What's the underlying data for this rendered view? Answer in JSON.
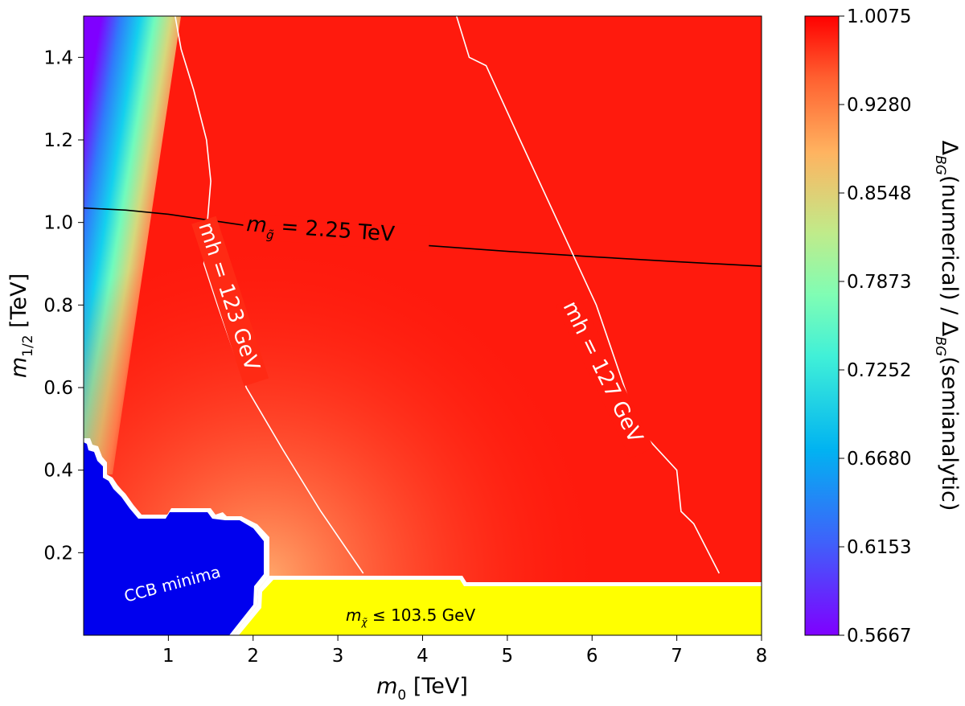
{
  "chart_data": {
    "type": "heatmap",
    "title": "",
    "xlabel_main": "m",
    "xlabel_sub": "0",
    "xlabel_unit": " [TeV]",
    "ylabel_main": "m",
    "ylabel_sub": "1/2",
    "ylabel_unit": " [TeV]",
    "xlim": [
      0,
      8
    ],
    "ylim": [
      0,
      1.5
    ],
    "x_ticks": [
      1,
      2,
      3,
      4,
      5,
      6,
      7,
      8
    ],
    "x_tick_labels": [
      "1",
      "2",
      "3",
      "4",
      "5",
      "6",
      "7",
      "8"
    ],
    "y_ticks": [
      0.2,
      0.4,
      0.6,
      0.8,
      1.0,
      1.2,
      1.4
    ],
    "y_tick_labels": [
      "0.2",
      "0.4",
      "0.6",
      "0.8",
      "1.0",
      "1.2",
      "1.4"
    ],
    "colorbar": {
      "min": 0.5667,
      "max": 1.0075,
      "ticks": [
        1.0075,
        0.928,
        0.8548,
        0.7873,
        0.7252,
        0.668,
        0.6153,
        0.5667
      ],
      "tick_labels": [
        "1.0075",
        "0.9280",
        "0.8548",
        "0.7873",
        "0.7252",
        "0.6680",
        "0.6153",
        "0.5667"
      ],
      "label": "ΔBG(numerical) / ΔBG(semianalytic)",
      "label_parts": {
        "delta": "Δ",
        "sub": "BG",
        "num": "(numerical) / ",
        "sem": "(semianalytic)"
      },
      "colormap": "rainbow"
    },
    "contours": [
      {
        "name": "gluino",
        "label": "m̃ = 2.25 TeV",
        "label_parts": {
          "m": "m",
          "sub": "g̃",
          "rest": " = 2.25 TeV"
        },
        "color": "#000000",
        "x": [
          0,
          0.5,
          1.0,
          1.5,
          2.0,
          3.0,
          4.0,
          5.0,
          6.0,
          7.0,
          8.0
        ],
        "y": [
          1.035,
          1.03,
          1.02,
          1.005,
          0.99,
          0.965,
          0.945,
          0.93,
          0.917,
          0.905,
          0.894
        ]
      },
      {
        "name": "mh123",
        "label": "mh = 123 GeV",
        "color": "#ffffff",
        "x": [
          1.08,
          1.15,
          1.3,
          1.45,
          1.5,
          1.42,
          1.58,
          1.92,
          2.35,
          2.8,
          3.3
        ],
        "y": [
          1.5,
          1.42,
          1.32,
          1.2,
          1.1,
          0.9,
          0.8,
          0.6,
          0.45,
          0.3,
          0.15
        ]
      },
      {
        "name": "mh127",
        "label": "mh = 127 GeV",
        "color": "#ffffff",
        "x": [
          4.4,
          4.55,
          4.75,
          5.15,
          5.6,
          6.05,
          6.55,
          7.0,
          7.05,
          7.2,
          7.5
        ],
        "y": [
          1.5,
          1.4,
          1.38,
          1.2,
          1.0,
          0.8,
          0.5,
          0.4,
          0.3,
          0.27,
          0.15
        ]
      }
    ],
    "regions": [
      {
        "name": "ccb-minima",
        "label": "CCB minima",
        "color": "#0000ee"
      },
      {
        "name": "chargino-excluded",
        "label_parts": {
          "m": "m",
          "sub": "χ̃",
          "rest": " ≤ 103.5 GeV"
        },
        "label": "mχ ≤ 103.5 GeV",
        "color": "#ffff00"
      }
    ]
  }
}
